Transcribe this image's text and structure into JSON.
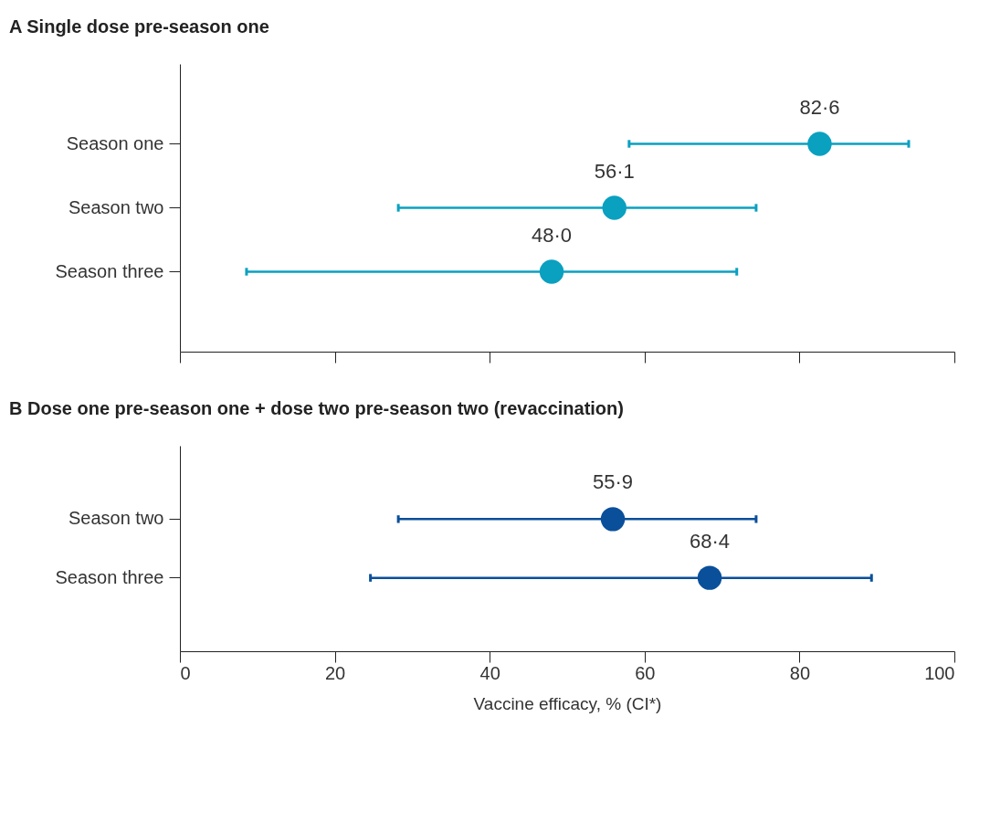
{
  "chart_data": [
    {
      "type": "scatter",
      "orientation": "horizontal",
      "title": "A  Single dose pre-season one",
      "categories": [
        "Season one",
        "Season two",
        "Season three"
      ],
      "values": [
        82.6,
        56.1,
        48.0
      ],
      "value_labels": [
        "82·6",
        "56·1",
        "48·0"
      ],
      "errors": [
        [
          58.0,
          94.1
        ],
        [
          28.2,
          74.4
        ],
        [
          8.6,
          71.9
        ]
      ],
      "color": "#0aa0c0",
      "marker": "circle",
      "xlim": [
        0,
        100
      ],
      "xticks": [
        0,
        20,
        40,
        60,
        80,
        100
      ],
      "tick_labels": "y"
    },
    {
      "type": "scatter",
      "orientation": "horizontal",
      "title": "B  Dose one pre-season one + dose two pre-season two (revaccination)",
      "categories": [
        "Season two",
        "Season three"
      ],
      "values": [
        55.9,
        68.4
      ],
      "value_labels": [
        "55·9",
        "68·4"
      ],
      "errors": [
        [
          28.2,
          74.4
        ],
        [
          24.6,
          89.3
        ]
      ],
      "color": "#0a4f9a",
      "marker": "circle",
      "xlim": [
        0,
        100
      ],
      "xticks": [
        0,
        20,
        40,
        60,
        80,
        100
      ],
      "xlabel": "Vaccine efficacy, % (CI*)"
    }
  ]
}
